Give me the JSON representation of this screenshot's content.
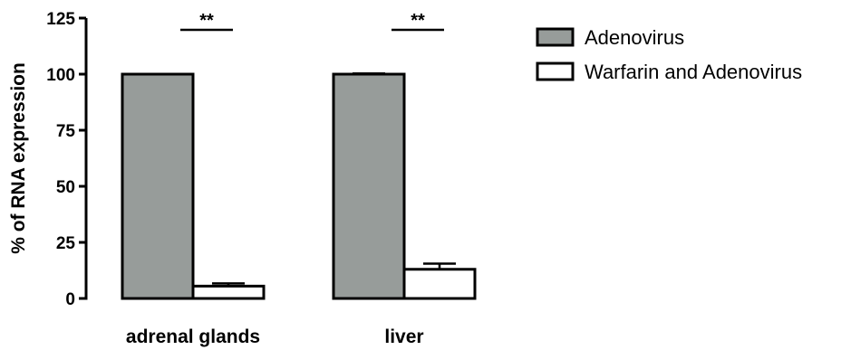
{
  "chart_data": {
    "type": "bar",
    "categories": [
      "adrenal glands",
      "liver"
    ],
    "series": [
      {
        "name": "Adenovirus",
        "values": [
          100,
          100
        ],
        "errors": [
          0,
          0.3
        ],
        "color": "#979c9a"
      },
      {
        "name": "Warfarin and Adenovirus",
        "values": [
          5.5,
          13
        ],
        "errors": [
          1.2,
          2.5
        ],
        "color": "#ffffff"
      }
    ],
    "ylabel": "% of RNA expression",
    "ylim": [
      0,
      125
    ],
    "yticks": [
      0,
      25,
      50,
      75,
      100,
      125
    ],
    "significance": [
      "**",
      "**"
    ],
    "grid": false,
    "legend_position": "top-right"
  }
}
